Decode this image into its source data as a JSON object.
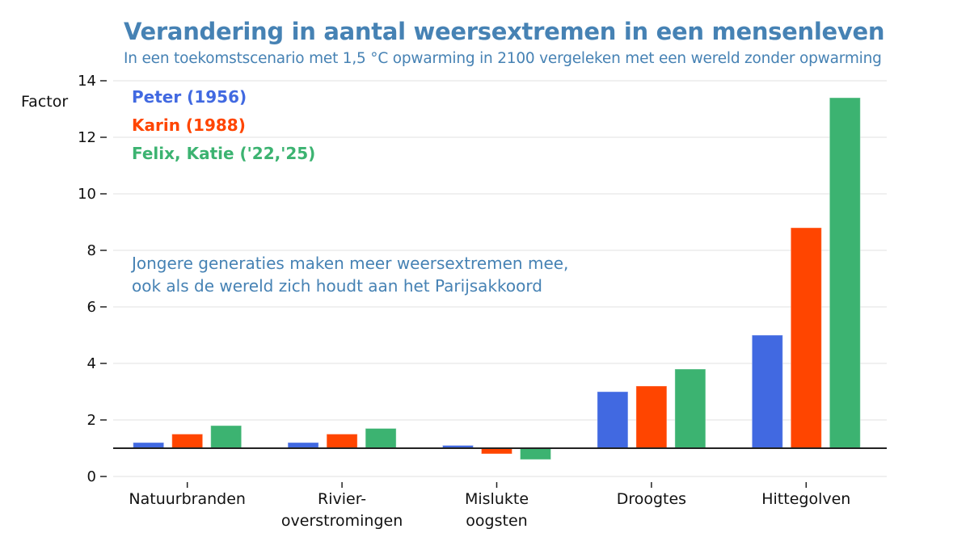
{
  "header": {
    "title": "Verandering in aantal weersextremen in een mensenleven",
    "subtitle": "In een toekomstscenario met 1,5 °C opwarming in 2100 vergeleken met een wereld zonder opwarming"
  },
  "chart_data": {
    "type": "bar",
    "title": "Verandering in aantal weersextremen in een mensenleven",
    "subtitle": "In een toekomstscenario met 1,5 °C opwarming in 2100 vergeleken met een wereld zonder opwarming",
    "xlabel": "",
    "ylabel": "Factor",
    "ylim": [
      0,
      14
    ],
    "yticks": [
      0,
      2,
      4,
      6,
      8,
      10,
      12,
      14
    ],
    "baseline": 1,
    "grid": true,
    "legend_position": "top-left",
    "categories": [
      [
        "Natuurbranden"
      ],
      [
        "Rivier-",
        "overstromingen"
      ],
      [
        "Mislukte",
        "oogsten"
      ],
      [
        "Droogtes"
      ],
      [
        "Hittegolven"
      ]
    ],
    "series": [
      {
        "name": "Peter (1956)",
        "color": "#4169e1",
        "values": [
          1.2,
          1.2,
          1.1,
          3.0,
          5.0
        ]
      },
      {
        "name": "Karin (1988)",
        "color": "#ff4500",
        "values": [
          1.5,
          1.5,
          0.8,
          3.2,
          8.8
        ]
      },
      {
        "name": "Felix, Katie ('22,'25)",
        "color": "#3cb371",
        "values": [
          1.8,
          1.7,
          0.6,
          3.8,
          13.4
        ]
      }
    ],
    "annotation": [
      "Jongere generaties maken meer weersextremen mee,",
      "ook als de wereld zich houdt aan het Parijsakkoord"
    ]
  }
}
